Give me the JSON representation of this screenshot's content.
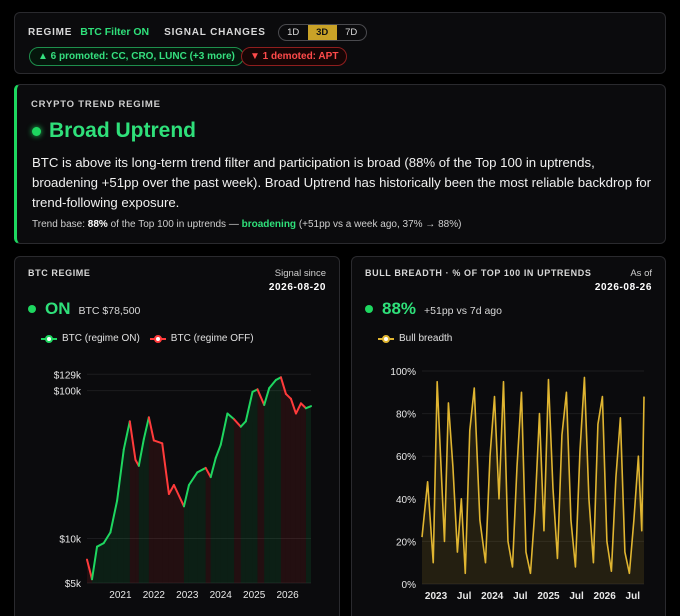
{
  "topbar": {
    "regime_label": "REGIME",
    "regime_value": "BTC Filter ON",
    "signal_label": "SIGNAL CHANGES",
    "periods": [
      "1D",
      "3D",
      "7D"
    ],
    "active_period": "3D",
    "promoted": "▲ 6 promoted: CC, CRO, LUNC (+3 more)",
    "demoted": "▼ 1 demoted: APT"
  },
  "regime": {
    "kicker": "CRYPTO TREND REGIME",
    "title": "Broad Uptrend",
    "description": "BTC is above its long-term trend filter and participation is broad (88% of the Top 100 in uptrends, broadening +51pp over the past week). Broad Uptrend has historically been the most reliable backdrop for trend-following exposure.",
    "base_prefix": "Trend base: ",
    "base_pct": "88%",
    "base_mid": " of the Top 100 in uptrends — ",
    "base_trend": "broadening",
    "base_suffix": " (+51pp vs a week ago, 37% → 88%)"
  },
  "btc_card": {
    "title": "BTC REGIME",
    "since_label": "Signal since",
    "since_date": "2026-08-20",
    "status": "ON",
    "price": "BTC $78,500",
    "legend_on": "BTC (regime ON)",
    "legend_off": "BTC (regime OFF)"
  },
  "breadth_card": {
    "title": "BULL BREADTH · % OF TOP 100 IN UPTRENDS",
    "asof_label": "As of",
    "asof_date": "2026-08-26",
    "value": "88%",
    "change": "+51pp vs 7d ago",
    "legend": "Bull breadth"
  },
  "colors": {
    "on": "#1ed760",
    "off": "#ff3b3b",
    "breadth": "#e0b531",
    "accent": "#c9a227"
  },
  "chart_data": [
    {
      "type": "line",
      "title": "BTC REGIME",
      "y_scale": "log",
      "ylim": [
        5000,
        140000
      ],
      "y_ticks": [
        5000,
        10000,
        100000,
        129000
      ],
      "y_tick_labels": [
        "$5k",
        "$10k",
        "$100k",
        "$129k"
      ],
      "x_tick_labels": [
        "2021",
        "2022",
        "2023",
        "2024",
        "2025",
        "2026"
      ],
      "x_range": [
        2020.0,
        2026.7
      ],
      "series": [
        {
          "name": "BTC (regime ON)",
          "color": "#1ed760"
        },
        {
          "name": "BTC (regime OFF)",
          "color": "#ff3b3b"
        }
      ],
      "points": [
        {
          "x": 2020.0,
          "y": 7200,
          "regime": "OFF"
        },
        {
          "x": 2020.15,
          "y": 5300,
          "regime": "OFF"
        },
        {
          "x": 2020.3,
          "y": 8800,
          "regime": "ON"
        },
        {
          "x": 2020.5,
          "y": 9300,
          "regime": "ON"
        },
        {
          "x": 2020.7,
          "y": 11000,
          "regime": "ON"
        },
        {
          "x": 2020.9,
          "y": 18000,
          "regime": "ON"
        },
        {
          "x": 2021.1,
          "y": 40000,
          "regime": "ON"
        },
        {
          "x": 2021.28,
          "y": 62000,
          "regime": "ON"
        },
        {
          "x": 2021.45,
          "y": 34000,
          "regime": "OFF"
        },
        {
          "x": 2021.55,
          "y": 31000,
          "regime": "OFF"
        },
        {
          "x": 2021.7,
          "y": 47000,
          "regime": "ON"
        },
        {
          "x": 2021.85,
          "y": 66000,
          "regime": "ON"
        },
        {
          "x": 2022.0,
          "y": 46000,
          "regime": "OFF"
        },
        {
          "x": 2022.25,
          "y": 44000,
          "regime": "OFF"
        },
        {
          "x": 2022.45,
          "y": 20000,
          "regime": "OFF"
        },
        {
          "x": 2022.6,
          "y": 23000,
          "regime": "OFF"
        },
        {
          "x": 2022.9,
          "y": 16500,
          "regime": "OFF"
        },
        {
          "x": 2023.05,
          "y": 23000,
          "regime": "ON"
        },
        {
          "x": 2023.3,
          "y": 28000,
          "regime": "ON"
        },
        {
          "x": 2023.55,
          "y": 30000,
          "regime": "ON"
        },
        {
          "x": 2023.7,
          "y": 26000,
          "regime": "OFF"
        },
        {
          "x": 2023.85,
          "y": 35000,
          "regime": "ON"
        },
        {
          "x": 2024.0,
          "y": 43000,
          "regime": "ON"
        },
        {
          "x": 2024.2,
          "y": 70000,
          "regime": "ON"
        },
        {
          "x": 2024.4,
          "y": 64000,
          "regime": "ON"
        },
        {
          "x": 2024.6,
          "y": 57000,
          "regime": "OFF"
        },
        {
          "x": 2024.75,
          "y": 62000,
          "regime": "ON"
        },
        {
          "x": 2024.95,
          "y": 98000,
          "regime": "ON"
        },
        {
          "x": 2025.1,
          "y": 102000,
          "regime": "ON"
        },
        {
          "x": 2025.3,
          "y": 80000,
          "regime": "OFF"
        },
        {
          "x": 2025.45,
          "y": 104000,
          "regime": "ON"
        },
        {
          "x": 2025.65,
          "y": 118000,
          "regime": "ON"
        },
        {
          "x": 2025.8,
          "y": 123000,
          "regime": "ON"
        },
        {
          "x": 2025.95,
          "y": 95000,
          "regime": "OFF"
        },
        {
          "x": 2026.1,
          "y": 88000,
          "regime": "OFF"
        },
        {
          "x": 2026.25,
          "y": 70000,
          "regime": "OFF"
        },
        {
          "x": 2026.4,
          "y": 82000,
          "regime": "OFF"
        },
        {
          "x": 2026.55,
          "y": 76000,
          "regime": "OFF"
        },
        {
          "x": 2026.7,
          "y": 78500,
          "regime": "ON"
        }
      ]
    },
    {
      "type": "line",
      "title": "BULL BREADTH · % OF TOP 100 IN UPTRENDS",
      "ylim": [
        0,
        100
      ],
      "y_ticks": [
        0,
        20,
        40,
        60,
        80,
        100
      ],
      "y_tick_labels": [
        "0%",
        "20%",
        "40%",
        "60%",
        "80%",
        "100%"
      ],
      "x_tick_labels": [
        "2023",
        "Jul",
        "2024",
        "Jul",
        "2025",
        "Jul",
        "2026",
        "Jul"
      ],
      "x_ticks": [
        2023.0,
        2023.5,
        2024.0,
        2024.5,
        2025.0,
        2025.5,
        2026.0,
        2026.5
      ],
      "x_range": [
        2022.75,
        2026.7
      ],
      "series": [
        {
          "name": "Bull breadth",
          "color": "#e0b531"
        }
      ],
      "x": [
        2022.75,
        2022.85,
        2022.95,
        2023.02,
        2023.08,
        2023.15,
        2023.22,
        2023.3,
        2023.38,
        2023.45,
        2023.52,
        2023.6,
        2023.68,
        2023.78,
        2023.88,
        2023.96,
        2024.04,
        2024.12,
        2024.2,
        2024.28,
        2024.36,
        2024.44,
        2024.52,
        2024.6,
        2024.68,
        2024.76,
        2024.84,
        2024.92,
        2025.0,
        2025.08,
        2025.16,
        2025.24,
        2025.32,
        2025.4,
        2025.48,
        2025.56,
        2025.64,
        2025.72,
        2025.8,
        2025.88,
        2025.96,
        2026.04,
        2026.12,
        2026.2,
        2026.28,
        2026.36,
        2026.44,
        2026.52,
        2026.6,
        2026.66,
        2026.7
      ],
      "values": [
        22,
        48,
        10,
        95,
        60,
        20,
        85,
        55,
        15,
        40,
        5,
        72,
        92,
        30,
        10,
        60,
        88,
        40,
        95,
        20,
        8,
        55,
        90,
        15,
        5,
        35,
        80,
        25,
        96,
        45,
        12,
        70,
        90,
        30,
        8,
        62,
        97,
        40,
        10,
        75,
        88,
        20,
        6,
        50,
        78,
        15,
        5,
        30,
        60,
        25,
        88
      ]
    }
  ]
}
